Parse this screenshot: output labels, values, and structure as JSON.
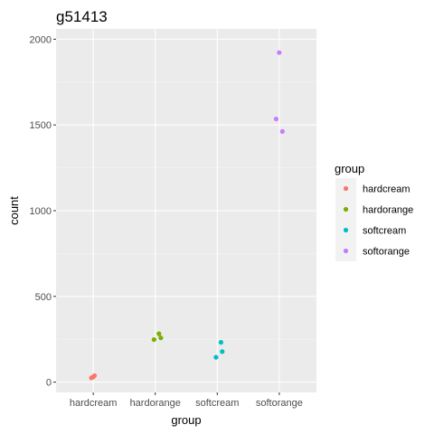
{
  "chart_data": {
    "type": "scatter",
    "title": "g51413",
    "xlabel": "group",
    "ylabel": "count",
    "categories": [
      "hardcream",
      "hardorange",
      "softcream",
      "softorange"
    ],
    "yticks": [
      0,
      500,
      1000,
      1500,
      2000
    ],
    "ylim": [
      -60,
      2060
    ],
    "grid": true,
    "legend": {
      "title": "group",
      "position": "right",
      "entries": [
        "hardcream",
        "hardorange",
        "softcream",
        "softorange"
      ]
    },
    "colors": {
      "hardcream": "#F8766D",
      "hardorange": "#7CAE00",
      "softcream": "#00BFC4",
      "softorange": "#C77CFF"
    },
    "series": [
      {
        "name": "hardcream",
        "points": [
          [
            -0.03,
            25
          ],
          [
            0.02,
            38
          ],
          [
            0.0,
            30
          ]
        ]
      },
      {
        "name": "hardorange",
        "points": [
          [
            -0.02,
            248
          ],
          [
            0.06,
            282
          ],
          [
            0.09,
            258
          ]
        ]
      },
      {
        "name": "softcream",
        "points": [
          [
            -0.02,
            145
          ],
          [
            0.06,
            232
          ],
          [
            0.08,
            178
          ]
        ]
      },
      {
        "name": "softorange",
        "points": [
          [
            -0.05,
            1535
          ],
          [
            0.0,
            1922
          ],
          [
            0.05,
            1462
          ]
        ]
      }
    ]
  }
}
